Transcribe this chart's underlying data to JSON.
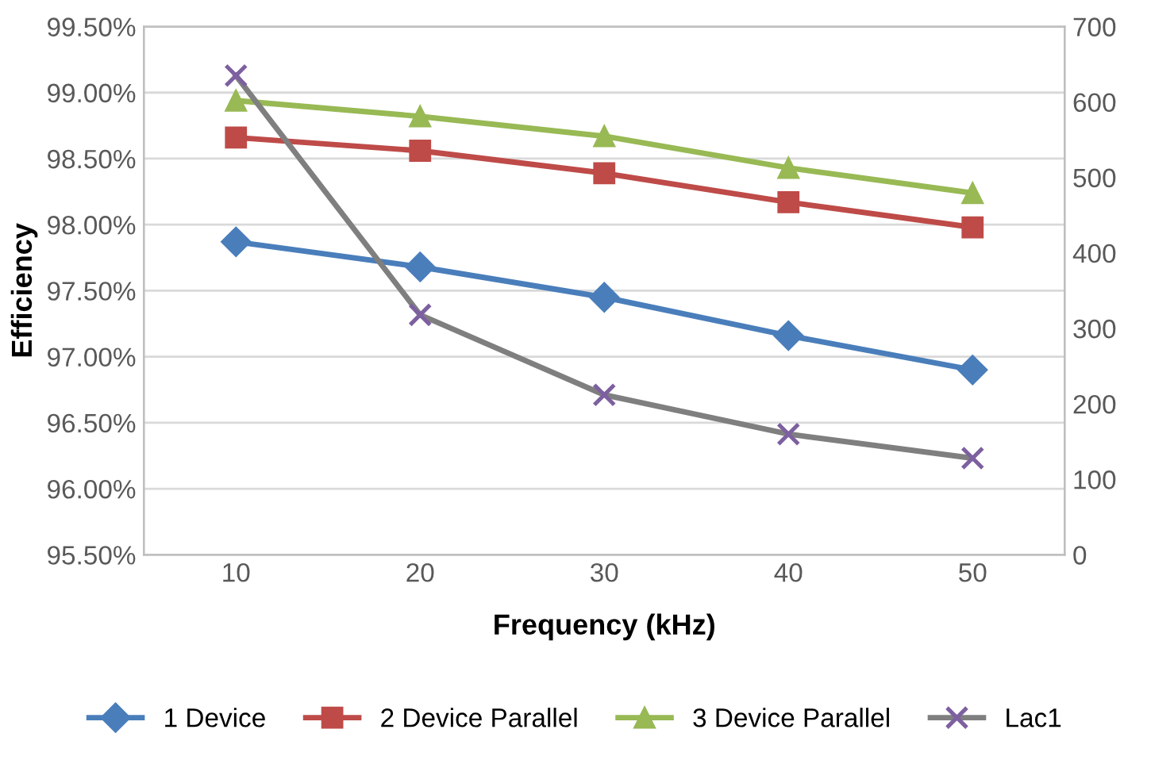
{
  "chart_data": {
    "type": "line",
    "xlabel": "Frequency (kHz)",
    "ylabel": "Efficiency",
    "categories": [
      "10",
      "20",
      "30",
      "40",
      "50"
    ],
    "series": [
      {
        "name": "1 Device",
        "color": "#4a7ebb",
        "marker": "diamond",
        "values": [
          97.87,
          97.68,
          97.45,
          97.16,
          96.9
        ]
      },
      {
        "name": "2 Device Parallel",
        "color": "#be4b48",
        "marker": "square",
        "values": [
          98.66,
          98.56,
          98.39,
          98.17,
          97.98
        ]
      },
      {
        "name": "3 Device Parallel",
        "color": "#98b954",
        "marker": "triangle",
        "values": [
          98.94,
          98.82,
          98.67,
          98.43,
          98.24
        ]
      },
      {
        "name": "Lac1",
        "color": "#7f7f7f",
        "marker": "cross",
        "axis": "y2",
        "values": [
          635,
          318,
          212,
          160,
          128
        ]
      }
    ],
    "ylim": [
      95.5,
      99.5
    ],
    "yticks": [
      {
        "value": 95.5,
        "label": "95.50%"
      },
      {
        "value": 96.0,
        "label": "96.00%"
      },
      {
        "value": 96.5,
        "label": "96.50%"
      },
      {
        "value": 97.0,
        "label": "97.00%"
      },
      {
        "value": 97.5,
        "label": "97.50%"
      },
      {
        "value": 98.0,
        "label": "98.00%"
      },
      {
        "value": 98.5,
        "label": "98.50%"
      },
      {
        "value": 99.0,
        "label": "99.00%"
      },
      {
        "value": 99.5,
        "label": "99.50%"
      }
    ],
    "y2lim": [
      0,
      700
    ],
    "y2ticks": [
      0,
      100,
      200,
      300,
      400,
      500,
      600,
      700
    ],
    "grid": "y",
    "legend": "bottom",
    "line_style": "solid"
  }
}
